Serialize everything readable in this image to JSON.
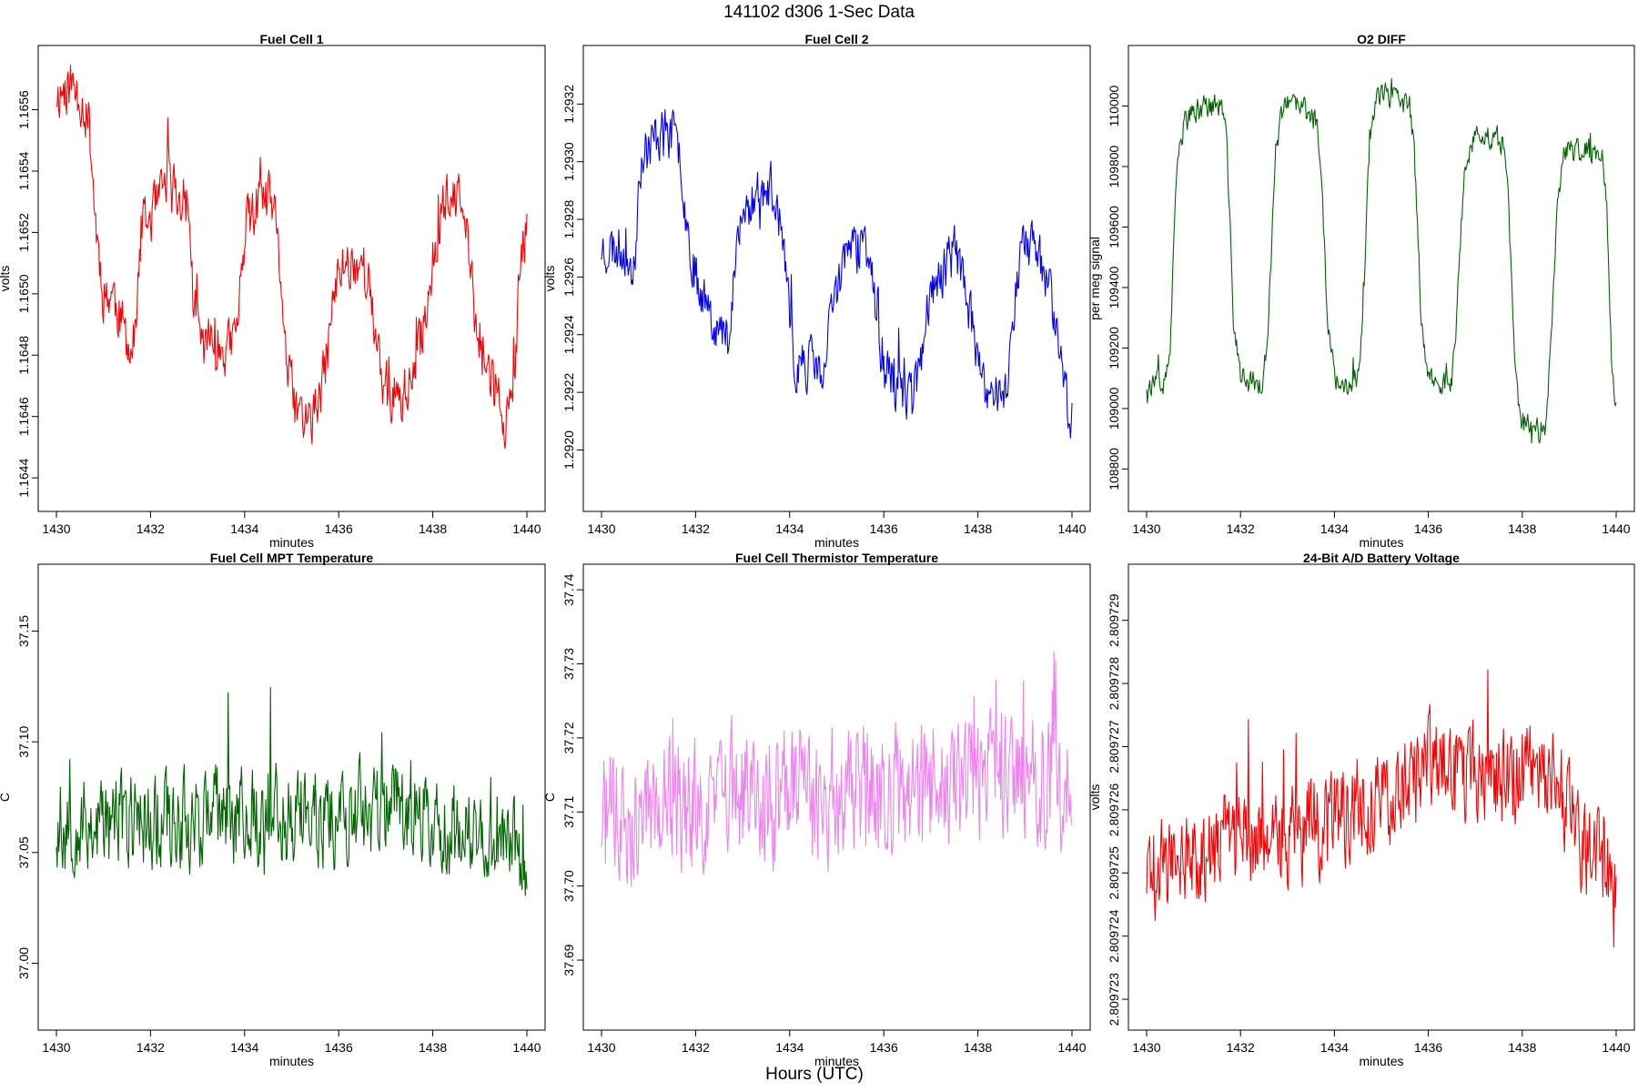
{
  "figure": {
    "title": "141102   d306   1-Sec Data",
    "footer": "Hours (UTC)"
  },
  "chart_data": [
    {
      "type": "line",
      "title": "Fuel Cell 1",
      "xlabel": "minutes",
      "ylabel": "volts",
      "color": "#ff0000",
      "xlim": [
        1430,
        1440
      ],
      "ylim": [
        1.16435,
        1.16575
      ],
      "xticks": [
        "1430",
        "1432",
        "1434",
        "1436",
        "1438",
        "1440"
      ],
      "yticks": [
        "1.1644",
        "1.1646",
        "1.1648",
        "1.1650",
        "1.1652",
        "1.1654",
        "1.1656"
      ],
      "series": [
        {
          "name": "Fuel Cell 1",
          "noise": 0.00012,
          "seed": 11,
          "x": [
            1430,
            1430.3,
            1430.5,
            1430.7,
            1430.85,
            1431.0,
            1431.2,
            1431.4,
            1431.6,
            1431.7,
            1431.8,
            1432.2,
            1432.4,
            1432.6,
            1432.8,
            1432.9,
            1433.1,
            1433.3,
            1433.5,
            1433.7,
            1433.85,
            1434.0,
            1434.3,
            1434.6,
            1434.8,
            1434.9,
            1435.1,
            1435.4,
            1435.6,
            1435.75,
            1435.9,
            1436.1,
            1436.3,
            1436.5,
            1436.7,
            1436.8,
            1437.0,
            1437.2,
            1437.4,
            1437.6,
            1437.8,
            1438.2,
            1438.4,
            1438.6,
            1438.8,
            1438.9,
            1439.2,
            1439.4,
            1439.6,
            1439.75,
            1439.85,
            1440.0
          ],
          "y": [
            1.16565,
            1.16568,
            1.16565,
            1.16555,
            1.1652,
            1.165,
            1.165,
            1.1649,
            1.1648,
            1.1649,
            1.1652,
            1.1653,
            1.1654,
            1.1653,
            1.1653,
            1.165,
            1.16483,
            1.16485,
            1.16482,
            1.16482,
            1.1649,
            1.1652,
            1.1653,
            1.1653,
            1.165,
            1.16475,
            1.16462,
            1.16458,
            1.16465,
            1.1648,
            1.165,
            1.1651,
            1.1651,
            1.1651,
            1.165,
            1.1648,
            1.16468,
            1.16465,
            1.16468,
            1.16472,
            1.1649,
            1.1653,
            1.1653,
            1.1653,
            1.1651,
            1.1649,
            1.16475,
            1.16465,
            1.16458,
            1.1647,
            1.1651,
            1.1652
          ]
        }
      ]
    },
    {
      "type": "line",
      "title": "Fuel Cell 2",
      "xlabel": "minutes",
      "ylabel": "volts",
      "color": "#0000ff",
      "xlim": [
        1430,
        1440
      ],
      "ylim": [
        1.29185,
        1.29334
      ],
      "xticks": [
        "1430",
        "1432",
        "1434",
        "1436",
        "1438",
        "1440"
      ],
      "yticks": [
        "1.2920",
        "1.2922",
        "1.2924",
        "1.2926",
        "1.2928",
        "1.2930",
        "1.2932"
      ],
      "series": [
        {
          "name": "Fuel Cell 2",
          "noise": 0.00012,
          "seed": 23,
          "x": [
            1430,
            1430.3,
            1430.5,
            1430.7,
            1430.8,
            1431.2,
            1431.5,
            1431.7,
            1431.8,
            1432.0,
            1432.3,
            1432.5,
            1432.7,
            1432.8,
            1433.0,
            1433.3,
            1433.6,
            1433.8,
            1433.9,
            1434.1,
            1434.4,
            1434.6,
            1434.7,
            1434.9,
            1435.2,
            1435.5,
            1435.7,
            1435.8,
            1436.0,
            1436.3,
            1436.6,
            1436.8,
            1436.9,
            1437.2,
            1437.5,
            1437.7,
            1437.9,
            1438.1,
            1438.4,
            1438.6,
            1438.7,
            1438.9,
            1439.2,
            1439.5,
            1439.7,
            1439.85,
            1440.0
          ],
          "y": [
            1.2927,
            1.2927,
            1.2927,
            1.2926,
            1.293,
            1.2931,
            1.2931,
            1.293,
            1.2928,
            1.2926,
            1.2925,
            1.2924,
            1.2924,
            1.2926,
            1.2928,
            1.2929,
            1.2929,
            1.2928,
            1.2926,
            1.2923,
            1.2923,
            1.2923,
            1.2922,
            1.2925,
            1.2927,
            1.2927,
            1.2927,
            1.2925,
            1.2923,
            1.2922,
            1.2922,
            1.2923,
            1.2925,
            1.2926,
            1.2927,
            1.2926,
            1.2924,
            1.2922,
            1.2922,
            1.2922,
            1.2924,
            1.2927,
            1.2927,
            1.2926,
            1.2924,
            1.2922,
            1.2921
          ]
        }
      ]
    },
    {
      "type": "line",
      "title": "O2 DIFF",
      "xlabel": "minutes",
      "ylabel": "per meg signal",
      "color": "#006400",
      "xlim": [
        1430,
        1440
      ],
      "ylim": [
        108720,
        110140
      ],
      "xticks": [
        "1430",
        "1432",
        "1434",
        "1436",
        "1438",
        "1440"
      ],
      "yticks": [
        "108800",
        "109000",
        "109200",
        "109400",
        "109600",
        "109800",
        "110000"
      ],
      "series": [
        {
          "name": "O2 DIFF",
          "noise": 55,
          "seed": 37,
          "x": [
            1430,
            1430.4,
            1430.5,
            1430.65,
            1430.8,
            1431.2,
            1431.6,
            1431.7,
            1431.85,
            1432.0,
            1432.4,
            1432.5,
            1432.6,
            1432.75,
            1432.9,
            1433.3,
            1433.6,
            1433.7,
            1433.85,
            1434.0,
            1434.4,
            1434.5,
            1434.6,
            1434.75,
            1434.9,
            1435.3,
            1435.6,
            1435.7,
            1435.85,
            1436.0,
            1436.4,
            1436.5,
            1436.6,
            1436.75,
            1436.9,
            1437.3,
            1437.6,
            1437.7,
            1437.85,
            1438.0,
            1438.4,
            1438.5,
            1438.6,
            1438.75,
            1438.9,
            1439.3,
            1439.7,
            1439.8,
            1439.9,
            1440.0
          ],
          "y": [
            109080,
            109080,
            109200,
            109800,
            109950,
            110000,
            110000,
            109900,
            109300,
            109100,
            109080,
            109100,
            109300,
            109850,
            110000,
            110000,
            109950,
            109850,
            109300,
            109100,
            109080,
            109100,
            109300,
            109900,
            110050,
            110020,
            110000,
            109850,
            109300,
            109100,
            109080,
            109080,
            109300,
            109750,
            109880,
            109900,
            109880,
            109700,
            109100,
            108950,
            108920,
            108940,
            109200,
            109700,
            109850,
            109850,
            109850,
            109700,
            109150,
            109000
          ]
        }
      ]
    },
    {
      "type": "line",
      "title": "Fuel Cell MPT Temperature",
      "xlabel": "minutes",
      "ylabel": "C",
      "color": "#006400",
      "xlim": [
        1430,
        1440
      ],
      "ylim": [
        36.978,
        37.172
      ],
      "xticks": [
        "1430",
        "1432",
        "1434",
        "1436",
        "1438",
        "1440"
      ],
      "yticks": [
        "37.00",
        "37.05",
        "37.10",
        "37.15"
      ],
      "series": [
        {
          "name": "Fuel Cell MPT Temperature",
          "noise": 0.03,
          "seed": 53,
          "x": [
            1430,
            1432,
            1434,
            1436,
            1437.4,
            1438,
            1440
          ],
          "y": [
            37.062,
            37.065,
            37.067,
            37.066,
            37.072,
            37.062,
            37.05
          ]
        }
      ]
    },
    {
      "type": "line",
      "title": "Fuel Cell Thermistor Temperature",
      "xlabel": "minutes",
      "ylabel": "C",
      "color": "#ee82ee",
      "xlim": [
        1430,
        1440
      ],
      "ylim": [
        37.683,
        37.741
      ],
      "xticks": [
        "1430",
        "1432",
        "1434",
        "1436",
        "1438",
        "1440"
      ],
      "yticks": [
        "37.69",
        "37.70",
        "37.71",
        "37.72",
        "37.73",
        "37.74"
      ],
      "series": [
        {
          "name": "Fuel Cell Thermistor Temperature",
          "noise": 0.012,
          "seed": 71,
          "x": [
            1430,
            1432,
            1434,
            1436,
            1438,
            1440
          ],
          "y": [
            37.709,
            37.711,
            37.712,
            37.713,
            37.714,
            37.715
          ]
        }
      ]
    },
    {
      "type": "line",
      "title": "24-Bit A/D Battery Voltage",
      "xlabel": "minutes",
      "ylabel": "volts",
      "color": "#ff0000",
      "xlim": [
        1430,
        1440
      ],
      "ylim": [
        2.8097228,
        2.8097296
      ],
      "xticks": [
        "1430",
        "1432",
        "1434",
        "1436",
        "1438",
        "1440"
      ],
      "yticks": [
        "2.809723",
        "2.809724",
        "2.809725",
        "2.809726",
        "2.809727",
        "2.809728",
        "2.809729"
      ],
      "series": [
        {
          "name": "24-Bit A/D Battery Voltage",
          "noise": 1.1e-06,
          "seed": 89,
          "x": [
            1430,
            1431,
            1432,
            1433,
            1434,
            1435,
            1436,
            1437,
            1438,
            1438.7,
            1439.3,
            1440
          ],
          "y": [
            2.809725,
            2.8097253,
            2.8097255,
            2.8097256,
            2.8097258,
            2.8097262,
            2.8097267,
            2.8097266,
            2.8097266,
            2.8097266,
            2.8097255,
            2.809725
          ]
        }
      ]
    }
  ]
}
